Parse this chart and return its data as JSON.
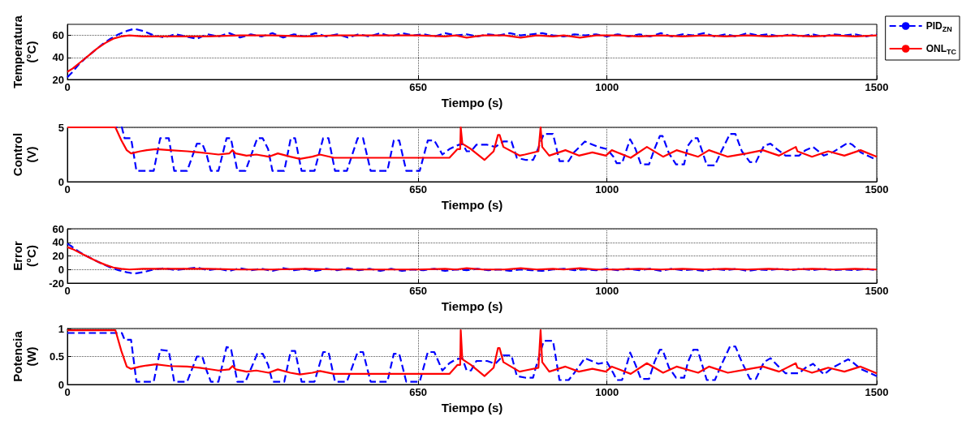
{
  "chart_data": [
    {
      "type": "line",
      "xlabel": "Tiempo (s)",
      "ylabel": "Temperatura\n(°C)",
      "xlim": [
        0,
        1500
      ],
      "xticks": [
        0,
        650,
        1000,
        1500
      ],
      "ylim": [
        20,
        70
      ],
      "yticks": [
        20,
        40,
        60
      ],
      "grid": true,
      "legend": "top right",
      "marker": "none",
      "series": [
        {
          "name": "PID$_{ZN}$",
          "color": "#0000ff",
          "line_style": "dashed",
          "x": [
            0,
            8,
            20,
            35,
            50,
            65,
            80,
            95,
            110,
            124,
            140,
            160,
            180,
            200,
            220,
            240,
            260,
            280,
            300,
            320,
            340,
            360,
            380,
            400,
            420,
            440,
            460,
            480,
            500,
            520,
            540,
            560,
            580,
            600,
            620,
            640,
            660,
            680,
            700,
            720,
            740,
            760,
            780,
            800,
            820,
            840,
            860,
            880,
            900,
            920,
            940,
            960,
            980,
            1000,
            1020,
            1040,
            1060,
            1080,
            1100,
            1120,
            1140,
            1160,
            1180,
            1200,
            1220,
            1240,
            1260,
            1280,
            1300,
            1320,
            1340,
            1360,
            1380,
            1400,
            1420,
            1440,
            1460,
            1480,
            1500
          ],
          "values": [
            22,
            26,
            33,
            40,
            46,
            52,
            57,
            61,
            64,
            66,
            64,
            60,
            58,
            61,
            59,
            57,
            61,
            59,
            62,
            58,
            61,
            59,
            62,
            58,
            61,
            59,
            62,
            59,
            61,
            58,
            61,
            59,
            62,
            59,
            62,
            60,
            61,
            59,
            62,
            60,
            61,
            59,
            61,
            60,
            62,
            60,
            61,
            62,
            60,
            59,
            61,
            60,
            61,
            59,
            61,
            59,
            61,
            59,
            62,
            59,
            61,
            60,
            62,
            59,
            61,
            59,
            62,
            60,
            61,
            59,
            61,
            59,
            61,
            59,
            61,
            60,
            61,
            59,
            61
          ]
        },
        {
          "name": "ONL$_{TC}$",
          "color": "#ff0000",
          "line_style": "solid",
          "x": [
            0,
            10,
            25,
            40,
            55,
            70,
            85,
            100,
            115,
            140,
            200,
            260,
            320,
            380,
            440,
            500,
            560,
            620,
            650,
            700,
            720,
            740,
            770,
            810,
            840,
            870,
            900,
            920,
            950,
            980,
            1020,
            1060,
            1100,
            1140,
            1180,
            1220,
            1260,
            1300,
            1340,
            1380,
            1420,
            1460,
            1500
          ],
          "values": [
            27,
            30,
            36,
            42,
            48,
            53,
            57,
            59,
            60,
            59,
            59,
            59,
            60,
            60,
            59,
            60,
            60,
            60,
            60,
            59,
            60,
            58,
            60,
            60,
            58,
            60,
            59,
            60,
            58,
            60,
            60,
            59,
            60,
            59,
            60,
            59,
            60,
            59,
            60,
            59,
            60,
            59,
            60
          ]
        }
      ]
    },
    {
      "type": "line",
      "xlabel": "Tiempo (s)",
      "ylabel": "Control\n(V)",
      "xlim": [
        0,
        1500
      ],
      "xticks": [
        0,
        650,
        1000,
        1500
      ],
      "ylim": [
        0,
        5
      ],
      "yticks": [
        0,
        5
      ],
      "grid": true,
      "marker": "none",
      "series": [
        {
          "color": "#0000ff",
          "line_style": "dashed",
          "x": [
            0,
            101,
            106,
            118,
            128,
            160,
            172,
            188,
            198,
            222,
            240,
            250,
            258,
            266,
            280,
            295,
            303,
            315,
            330,
            352,
            362,
            372,
            380,
            402,
            414,
            422,
            434,
            458,
            474,
            484,
            496,
            518,
            538,
            548,
            562,
            593,
            605,
            615,
            628,
            653,
            668,
            680,
            695,
            708,
            720,
            732,
            740,
            748,
            758,
            778,
            793,
            808,
            823,
            833,
            850,
            863,
            868,
            883,
            900,
            912,
            929,
            939,
            959,
            984,
            1000,
            1012,
            1018,
            1028,
            1038,
            1043,
            1053,
            1063,
            1078,
            1088,
            1098,
            1103,
            1115,
            1128,
            1143,
            1150,
            1160,
            1168,
            1178,
            1185,
            1200,
            1212,
            1228,
            1238,
            1250,
            1265,
            1276,
            1291,
            1303,
            1315,
            1331,
            1356,
            1368,
            1382,
            1402,
            1418,
            1447,
            1455,
            1470,
            1500
          ],
          "values": [
            5,
            5,
            4,
            4,
            1,
            1,
            4,
            4,
            1,
            1,
            3.5,
            3.5,
            2.5,
            1,
            1,
            4,
            4,
            1,
            1,
            4,
            4,
            3,
            1,
            1,
            4,
            4,
            1,
            1,
            4,
            4,
            1,
            1,
            4,
            4,
            1,
            1,
            3.8,
            3.8,
            1,
            1,
            3.8,
            3.8,
            2.5,
            3,
            3.3,
            3.5,
            2.8,
            2.8,
            3.4,
            3.4,
            3.2,
            3.7,
            3.7,
            2.2,
            2,
            2,
            2.5,
            4.4,
            4.4,
            1.9,
            1.9,
            2.7,
            3.7,
            3.2,
            3,
            2.3,
            1.7,
            1.7,
            3.2,
            3.9,
            3,
            1.6,
            1.6,
            3,
            4.2,
            4.2,
            2.6,
            1.6,
            1.6,
            3.3,
            4,
            4,
            2.6,
            1.5,
            1.5,
            2.8,
            4.4,
            4.4,
            2.8,
            1.8,
            1.8,
            3.3,
            3.5,
            3,
            2.4,
            2.4,
            2.9,
            3.2,
            2.4,
            2.7,
            3.6,
            3.4,
            2.7,
            2
          ]
        },
        {
          "color": "#ff0000",
          "line_style": "solid",
          "x": [
            0,
            89,
            100,
            110,
            118,
            135,
            147,
            164,
            190,
            222,
            245,
            280,
            300,
            306,
            312,
            332,
            350,
            373,
            390,
            413,
            431,
            454,
            468,
            494,
            529,
            570,
            650,
            708,
            723,
            728,
            729,
            732,
            748,
            773,
            790,
            798,
            801,
            808,
            838,
            848,
            873,
            877,
            880,
            893,
            923,
            948,
            973,
            998,
            1009,
            1044,
            1074,
            1104,
            1129,
            1169,
            1189,
            1224,
            1259,
            1289,
            1319,
            1350,
            1353,
            1380,
            1410,
            1440,
            1470,
            1500
          ],
          "values": [
            5,
            5,
            3.8,
            2.9,
            2.6,
            2.8,
            2.9,
            3,
            2.9,
            2.8,
            2.7,
            2.5,
            2.6,
            2.9,
            2.6,
            2.4,
            2.5,
            2.3,
            2.6,
            2.3,
            2.1,
            2.3,
            2.5,
            2.2,
            2.2,
            2.2,
            2.2,
            2.2,
            3,
            3,
            5,
            3.5,
            3,
            2,
            2.8,
            4.3,
            4.3,
            3.2,
            2.4,
            2.5,
            2.8,
            5,
            3.2,
            2.4,
            2.9,
            2.4,
            2.7,
            2.4,
            2.9,
            2.2,
            3.2,
            2.3,
            2.9,
            2.3,
            2.9,
            2.3,
            2.6,
            2.9,
            2.4,
            3.2,
            2.8,
            2.3,
            2.8,
            2.4,
            2.9,
            2.3
          ]
        }
      ]
    },
    {
      "type": "line",
      "xlabel": "Tiempo (s)",
      "ylabel": "Error\n(°C)",
      "xlim": [
        0,
        1500
      ],
      "xticks": [
        0,
        650,
        1000,
        1500
      ],
      "ylim": [
        -20,
        60
      ],
      "yticks": [
        -20,
        0,
        20,
        40,
        60
      ],
      "grid": true,
      "marker": "none",
      "series": [
        {
          "color": "#0000ff",
          "line_style": "dashed",
          "x": [
            0,
            8,
            20,
            35,
            50,
            65,
            80,
            95,
            110,
            124,
            140,
            160,
            180,
            200,
            220,
            240,
            260,
            280,
            300,
            320,
            340,
            360,
            380,
            400,
            420,
            440,
            460,
            480,
            500,
            520,
            540,
            560,
            580,
            600,
            620,
            640,
            660,
            680,
            700,
            720,
            740,
            760,
            780,
            800,
            820,
            840,
            860,
            880,
            900,
            920,
            940,
            960,
            980,
            1000,
            1020,
            1040,
            1060,
            1080,
            1100,
            1120,
            1140,
            1160,
            1180,
            1200,
            1220,
            1240,
            1260,
            1280,
            1300,
            1320,
            1340,
            1360,
            1380,
            1400,
            1420,
            1440,
            1460,
            1480,
            1500
          ],
          "values": [
            38,
            34,
            27,
            20,
            14,
            8,
            3,
            -1,
            -4,
            -6,
            -4,
            0,
            2,
            -1,
            1,
            3,
            -1,
            1,
            -2,
            2,
            -1,
            1,
            -2,
            2,
            -1,
            1,
            -2,
            1,
            -1,
            2,
            -1,
            1,
            -2,
            1,
            -2,
            0,
            -1,
            1,
            -2,
            0,
            -1,
            1,
            -1,
            0,
            -2,
            0,
            -1,
            -2,
            0,
            1,
            -1,
            0,
            -1,
            1,
            -1,
            1,
            -1,
            1,
            -2,
            1,
            -1,
            0,
            -2,
            1,
            -1,
            1,
            -2,
            0,
            -1,
            1,
            -1,
            1,
            -1,
            1,
            -1,
            0,
            -1,
            1,
            -1
          ]
        },
        {
          "color": "#ff0000",
          "line_style": "solid",
          "x": [
            0,
            10,
            25,
            40,
            55,
            70,
            85,
            100,
            115,
            140,
            200,
            260,
            320,
            380,
            440,
            500,
            560,
            620,
            650,
            700,
            720,
            740,
            770,
            810,
            840,
            870,
            900,
            920,
            950,
            980,
            1020,
            1060,
            1100,
            1140,
            1180,
            1220,
            1260,
            1300,
            1340,
            1380,
            1420,
            1460,
            1500
          ],
          "values": [
            33,
            30,
            24,
            18,
            12,
            7,
            3,
            1,
            0,
            1,
            1,
            1,
            0,
            0,
            1,
            0,
            0,
            0,
            0,
            1,
            0,
            2,
            0,
            0,
            2,
            0,
            1,
            0,
            2,
            0,
            0,
            1,
            0,
            1,
            0,
            1,
            0,
            1,
            0,
            1,
            0,
            1,
            0
          ]
        }
      ]
    },
    {
      "type": "line",
      "xlabel": "Tiempo (s)",
      "ylabel": "Potencia\n(W)",
      "xlim": [
        0,
        1500
      ],
      "xticks": [
        0,
        650,
        1000,
        1500
      ],
      "ylim": [
        0,
        1
      ],
      "yticks": [
        0,
        0.5,
        1
      ],
      "grid": true,
      "marker": "none",
      "series": [
        {
          "color": "#0000ff",
          "line_style": "dashed",
          "x": [
            0,
            101,
            106,
            118,
            128,
            160,
            172,
            188,
            198,
            222,
            240,
            250,
            258,
            266,
            280,
            295,
            303,
            315,
            330,
            352,
            362,
            372,
            380,
            402,
            414,
            422,
            434,
            458,
            474,
            484,
            496,
            518,
            538,
            548,
            562,
            593,
            605,
            615,
            628,
            653,
            668,
            680,
            695,
            708,
            720,
            732,
            740,
            748,
            758,
            778,
            793,
            808,
            823,
            833,
            850,
            863,
            868,
            883,
            900,
            912,
            929,
            939,
            959,
            984,
            1000,
            1012,
            1018,
            1028,
            1038,
            1043,
            1053,
            1063,
            1078,
            1088,
            1098,
            1103,
            1115,
            1128,
            1143,
            1150,
            1160,
            1168,
            1178,
            1185,
            1200,
            1212,
            1228,
            1238,
            1250,
            1265,
            1276,
            1291,
            1303,
            1315,
            1331,
            1356,
            1368,
            1382,
            1402,
            1418,
            1447,
            1455,
            1470,
            1500
          ],
          "values": [
            0.92,
            0.92,
            0.8,
            0.8,
            0.05,
            0.05,
            0.62,
            0.6,
            0.05,
            0.05,
            0.5,
            0.5,
            0.25,
            0.05,
            0.05,
            0.67,
            0.65,
            0.05,
            0.05,
            0.55,
            0.55,
            0.35,
            0.05,
            0.05,
            0.6,
            0.6,
            0.05,
            0.05,
            0.58,
            0.58,
            0.05,
            0.05,
            0.58,
            0.58,
            0.05,
            0.05,
            0.55,
            0.55,
            0.05,
            0.05,
            0.58,
            0.58,
            0.25,
            0.38,
            0.45,
            0.47,
            0.25,
            0.25,
            0.42,
            0.42,
            0.37,
            0.52,
            0.52,
            0.15,
            0.12,
            0.12,
            0.3,
            0.78,
            0.78,
            0.08,
            0.08,
            0.2,
            0.47,
            0.37,
            0.4,
            0.2,
            0.08,
            0.08,
            0.4,
            0.57,
            0.35,
            0.1,
            0.1,
            0.4,
            0.62,
            0.62,
            0.3,
            0.12,
            0.12,
            0.4,
            0.62,
            0.62,
            0.3,
            0.08,
            0.08,
            0.35,
            0.68,
            0.68,
            0.4,
            0.1,
            0.1,
            0.4,
            0.47,
            0.35,
            0.2,
            0.2,
            0.3,
            0.37,
            0.18,
            0.3,
            0.45,
            0.4,
            0.28,
            0.15
          ]
        },
        {
          "color": "#ff0000",
          "line_style": "solid",
          "x": [
            0,
            89,
            100,
            110,
            118,
            135,
            147,
            164,
            190,
            222,
            245,
            280,
            300,
            306,
            312,
            332,
            350,
            373,
            390,
            413,
            431,
            454,
            468,
            494,
            529,
            570,
            650,
            708,
            723,
            728,
            729,
            732,
            748,
            773,
            790,
            798,
            801,
            808,
            838,
            848,
            873,
            877,
            880,
            893,
            923,
            948,
            973,
            998,
            1009,
            1044,
            1074,
            1104,
            1129,
            1169,
            1189,
            1224,
            1259,
            1289,
            1319,
            1350,
            1353,
            1380,
            1410,
            1440,
            1470,
            1500
          ],
          "values": [
            0.97,
            0.97,
            0.6,
            0.32,
            0.28,
            0.32,
            0.34,
            0.36,
            0.33,
            0.32,
            0.3,
            0.25,
            0.27,
            0.33,
            0.27,
            0.23,
            0.25,
            0.21,
            0.27,
            0.21,
            0.18,
            0.21,
            0.24,
            0.19,
            0.19,
            0.19,
            0.19,
            0.19,
            0.35,
            0.35,
            0.97,
            0.45,
            0.35,
            0.15,
            0.3,
            0.65,
            0.65,
            0.4,
            0.23,
            0.25,
            0.3,
            0.97,
            0.4,
            0.23,
            0.32,
            0.23,
            0.28,
            0.23,
            0.32,
            0.19,
            0.38,
            0.21,
            0.32,
            0.21,
            0.32,
            0.21,
            0.27,
            0.32,
            0.23,
            0.38,
            0.3,
            0.21,
            0.3,
            0.23,
            0.32,
            0.2
          ]
        }
      ]
    }
  ]
}
